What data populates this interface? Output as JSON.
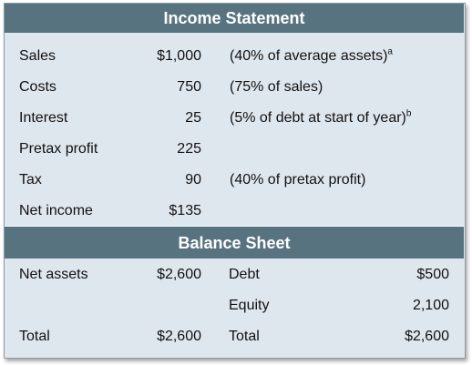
{
  "income_statement": {
    "title": "Income Statement",
    "rows": [
      {
        "label": "Sales",
        "amount": "$1,000",
        "note": "(40% of average assets)",
        "sup": "a"
      },
      {
        "label": "Costs",
        "amount": "750",
        "note": "(75% of sales)",
        "sup": ""
      },
      {
        "label": "Interest",
        "amount": "25",
        "note": "(5% of debt at start of year)",
        "sup": "b"
      },
      {
        "label": "Pretax profit",
        "amount": "225",
        "note": "",
        "sup": ""
      },
      {
        "label": "Tax",
        "amount": "90",
        "note": "(40% of pretax profit)",
        "sup": ""
      },
      {
        "label": "Net income",
        "amount": "$135",
        "note": "",
        "sup": ""
      }
    ]
  },
  "balance_sheet": {
    "title": "Balance Sheet",
    "rows": [
      {
        "left_label": "Net assets",
        "left_amount": "$2,600",
        "right_label": "Debt",
        "right_amount": "$500"
      },
      {
        "left_label": "",
        "left_amount": "",
        "right_label": "Equity",
        "right_amount": "2,100"
      },
      {
        "left_label": "Total",
        "left_amount": "$2,600",
        "right_label": "Total",
        "right_amount": "$2,600"
      }
    ]
  }
}
